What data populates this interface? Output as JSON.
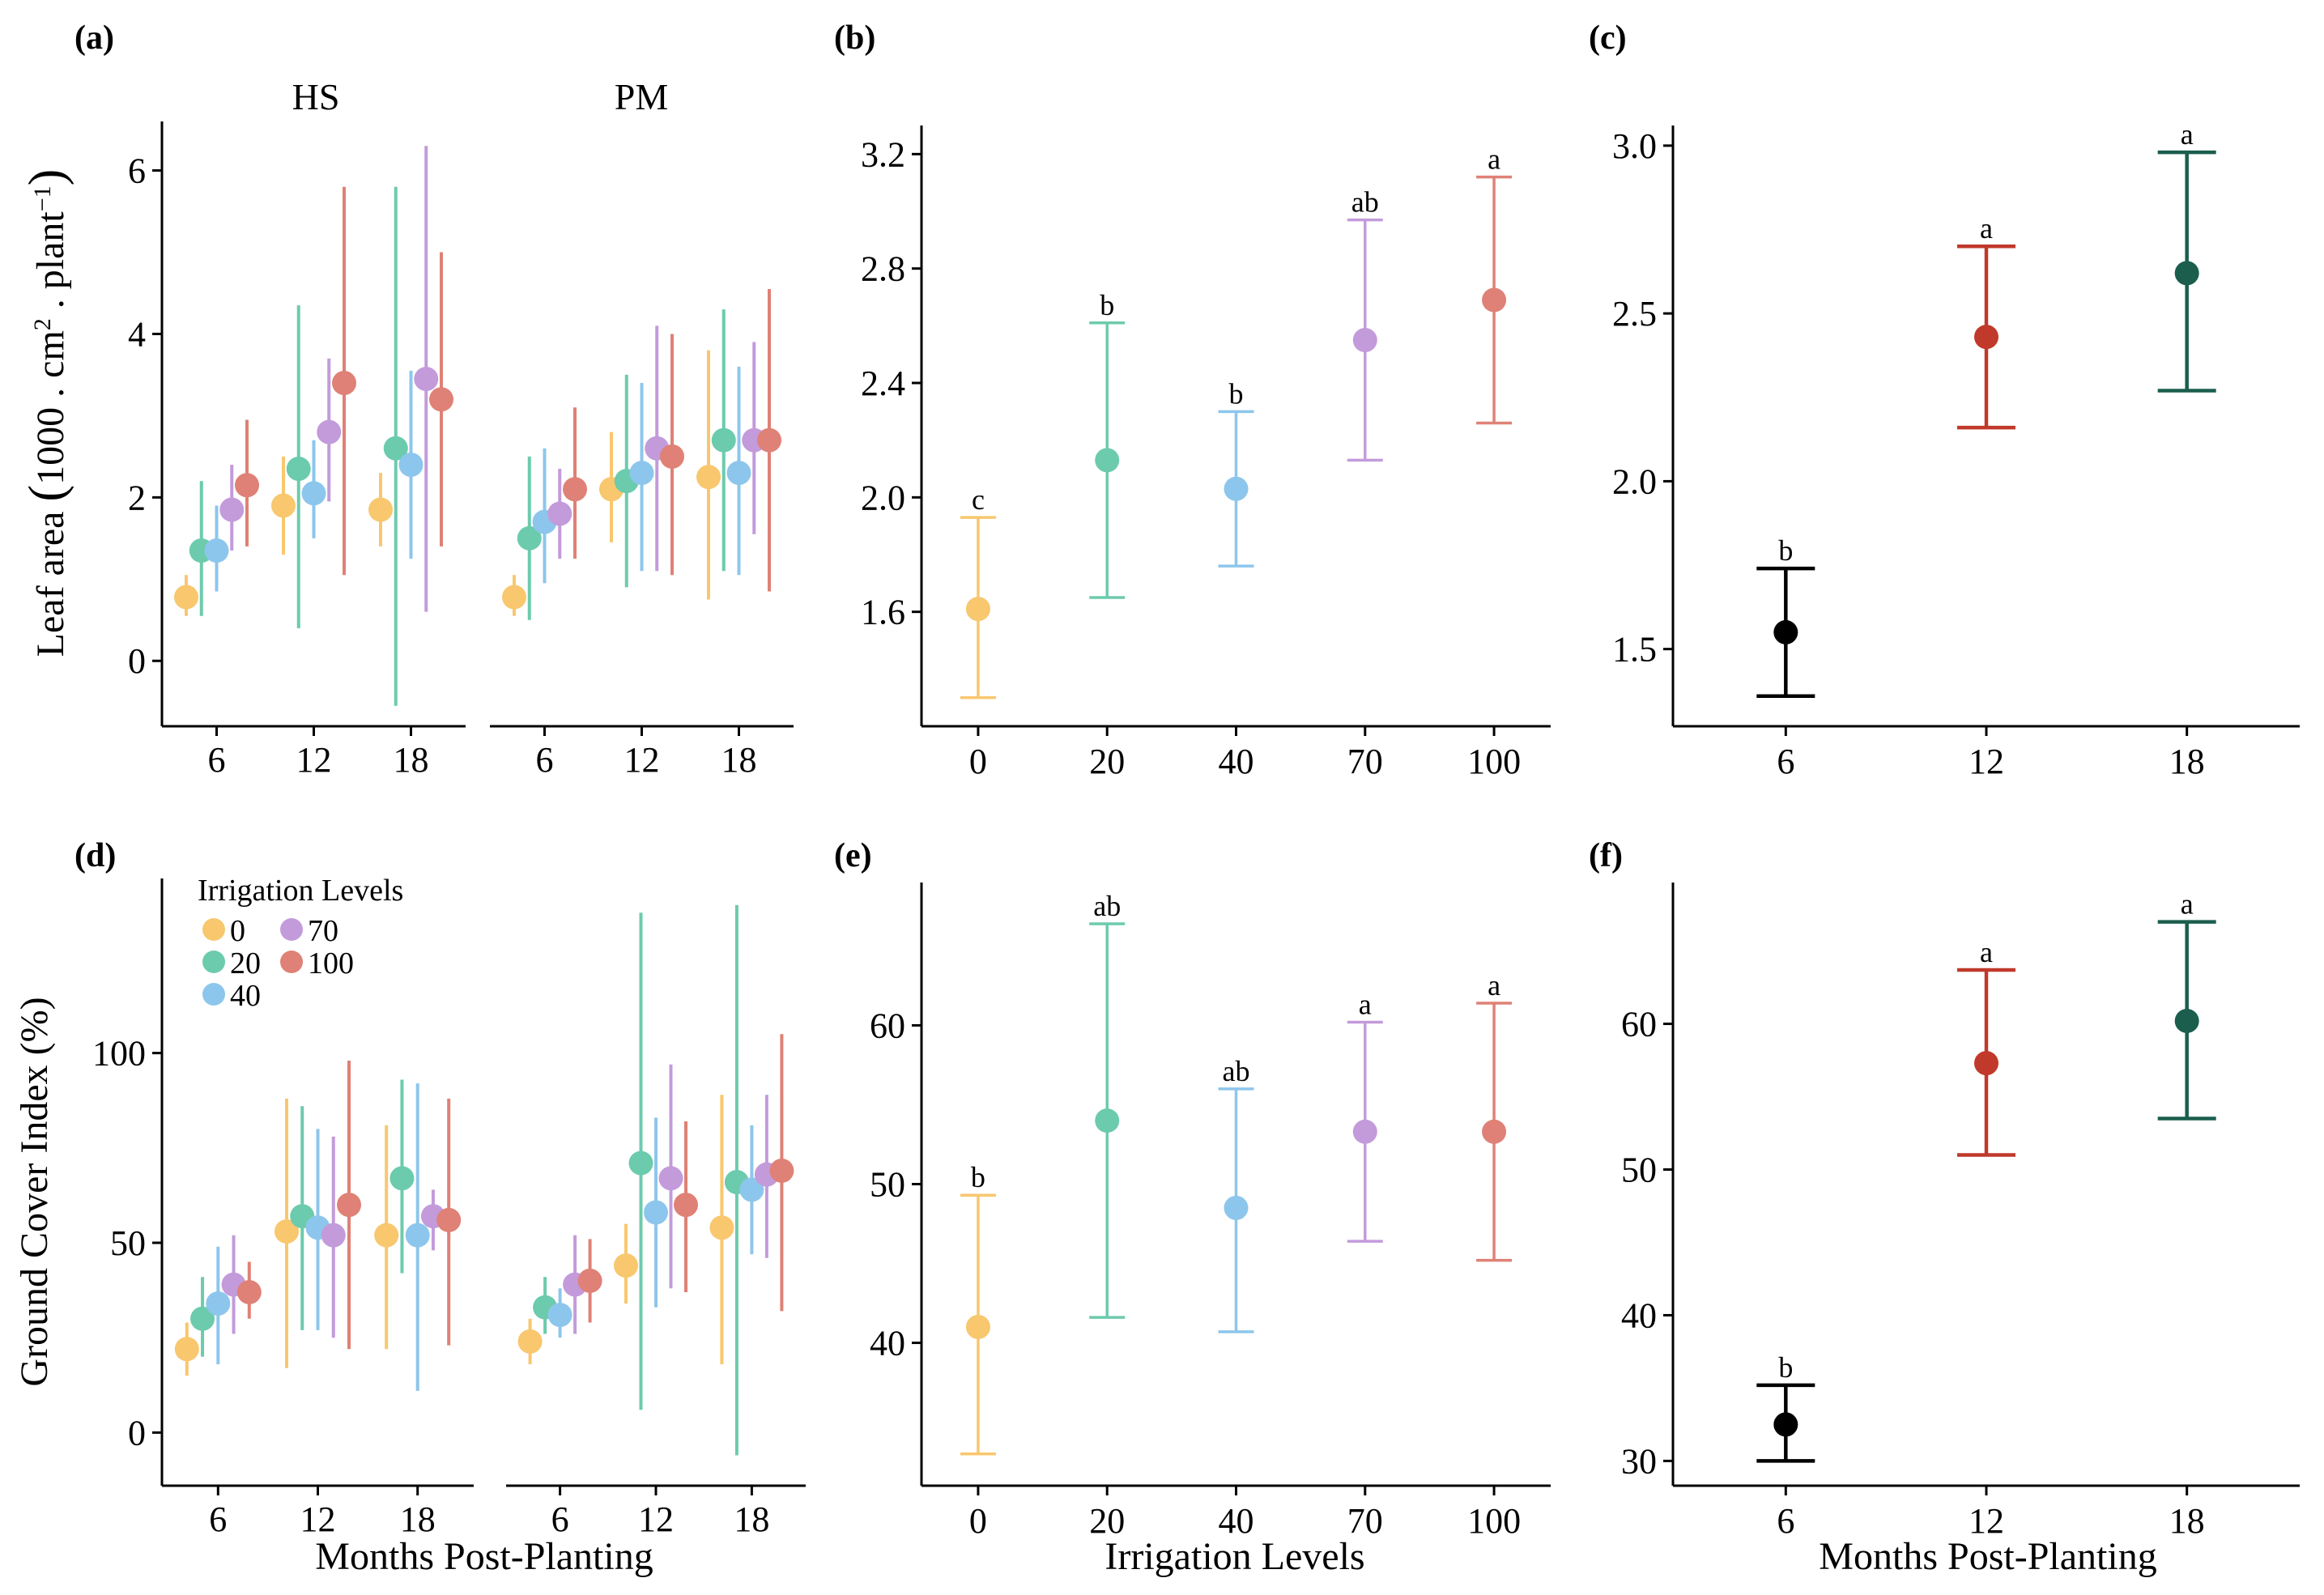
{
  "figure": {
    "x_label_months": "Months Post-Planting",
    "x_label_irrigation": "Irrigation Levels",
    "y_label_leaf_area": "Leaf area (1000 . cm² . plant⁻¹)",
    "y_label_leaf_area_parts": {
      "pre": "Leaf area ",
      "open_paren": "(",
      "main": "1000 . cm",
      "sup1": "2",
      "mid": " . plant",
      "sup2": "−1",
      "close_paren": ")"
    },
    "y_label_ground_cover": "Ground Cover Index (%)"
  },
  "colors": {
    "level_0": "#F8C76E",
    "level_20": "#6CCBAD",
    "level_40": "#8DC6EC",
    "level_70": "#C39BDB",
    "level_100": "#DF8176",
    "month_6": "#000000",
    "month_12": "#C0392B",
    "month_18": "#1B5E4E"
  },
  "legend": {
    "title": "Irrigation Levels",
    "items": [
      {
        "label": "0",
        "color": "#F8C76E"
      },
      {
        "label": "20",
        "color": "#6CCBAD"
      },
      {
        "label": "40",
        "color": "#8DC6EC"
      },
      {
        "label": "70",
        "color": "#C39BDB"
      },
      {
        "label": "100",
        "color": "#DF8176"
      }
    ]
  },
  "chart_data": [
    {
      "panel": "(a)",
      "type": "scatter",
      "facets": [
        "HS",
        "PM"
      ],
      "x_categories": [
        "6",
        "12",
        "18"
      ],
      "ylim": [
        -0.8,
        6.6
      ],
      "yticks": [
        0,
        2,
        4,
        6
      ],
      "ylabel": "Leaf area (1000 . cm² . plant⁻¹)",
      "grid": false,
      "series": [
        {
          "name": "0",
          "color": "#F8C76E",
          "HS": [
            {
              "x": "6",
              "y": 0.78,
              "lo": 0.55,
              "hi": 1.05
            },
            {
              "x": "12",
              "y": 1.9,
              "lo": 1.3,
              "hi": 2.5
            },
            {
              "x": "18",
              "y": 1.85,
              "lo": 1.4,
              "hi": 2.3
            }
          ],
          "PM": [
            {
              "x": "6",
              "y": 0.78,
              "lo": 0.55,
              "hi": 1.05
            },
            {
              "x": "12",
              "y": 2.1,
              "lo": 1.45,
              "hi": 2.8
            },
            {
              "x": "18",
              "y": 2.25,
              "lo": 0.75,
              "hi": 3.8
            }
          ]
        },
        {
          "name": "20",
          "color": "#6CCBAD",
          "HS": [
            {
              "x": "6",
              "y": 1.35,
              "lo": 0.55,
              "hi": 2.2
            },
            {
              "x": "12",
              "y": 2.35,
              "lo": 0.4,
              "hi": 4.35
            },
            {
              "x": "18",
              "y": 2.6,
              "lo": -0.55,
              "hi": 5.8
            }
          ],
          "PM": [
            {
              "x": "6",
              "y": 1.5,
              "lo": 0.5,
              "hi": 2.5
            },
            {
              "x": "12",
              "y": 2.2,
              "lo": 0.9,
              "hi": 3.5
            },
            {
              "x": "18",
              "y": 2.7,
              "lo": 1.1,
              "hi": 4.3
            }
          ]
        },
        {
          "name": "40",
          "color": "#8DC6EC",
          "HS": [
            {
              "x": "6",
              "y": 1.35,
              "lo": 0.85,
              "hi": 1.9
            },
            {
              "x": "12",
              "y": 2.05,
              "lo": 1.5,
              "hi": 2.7
            },
            {
              "x": "18",
              "y": 2.4,
              "lo": 1.25,
              "hi": 3.55
            }
          ],
          "PM": [
            {
              "x": "6",
              "y": 1.7,
              "lo": 0.95,
              "hi": 2.6
            },
            {
              "x": "12",
              "y": 2.3,
              "lo": 1.1,
              "hi": 3.4
            },
            {
              "x": "18",
              "y": 2.3,
              "lo": 1.05,
              "hi": 3.6
            }
          ]
        },
        {
          "name": "70",
          "color": "#C39BDB",
          "HS": [
            {
              "x": "6",
              "y": 1.85,
              "lo": 1.35,
              "hi": 2.4
            },
            {
              "x": "12",
              "y": 2.8,
              "lo": 1.95,
              "hi": 3.7
            },
            {
              "x": "18",
              "y": 3.45,
              "lo": 0.6,
              "hi": 6.3
            }
          ],
          "PM": [
            {
              "x": "6",
              "y": 1.8,
              "lo": 1.25,
              "hi": 2.35
            },
            {
              "x": "12",
              "y": 2.6,
              "lo": 1.1,
              "hi": 4.1
            },
            {
              "x": "18",
              "y": 2.7,
              "lo": 1.55,
              "hi": 3.9
            }
          ]
        },
        {
          "name": "100",
          "color": "#DF8176",
          "HS": [
            {
              "x": "6",
              "y": 2.15,
              "lo": 1.4,
              "hi": 2.95
            },
            {
              "x": "12",
              "y": 3.4,
              "lo": 1.05,
              "hi": 5.8
            },
            {
              "x": "18",
              "y": 3.2,
              "lo": 1.4,
              "hi": 5.0
            }
          ],
          "PM": [
            {
              "x": "6",
              "y": 2.1,
              "lo": 1.25,
              "hi": 3.1
            },
            {
              "x": "12",
              "y": 2.5,
              "lo": 1.05,
              "hi": 4.0
            },
            {
              "x": "18",
              "y": 2.7,
              "lo": 0.85,
              "hi": 4.55
            }
          ]
        }
      ]
    },
    {
      "panel": "(b)",
      "type": "scatter",
      "categories": [
        "0",
        "20",
        "40",
        "70",
        "100"
      ],
      "values": [
        1.61,
        2.13,
        2.03,
        2.55,
        2.69
      ],
      "lo": [
        1.3,
        1.65,
        1.76,
        2.13,
        2.26
      ],
      "hi": [
        1.93,
        2.61,
        2.3,
        2.97,
        3.12
      ],
      "letters": [
        "c",
        "b",
        "b",
        "ab",
        "a"
      ],
      "colors": [
        "#F8C76E",
        "#6CCBAD",
        "#8DC6EC",
        "#C39BDB",
        "#DF8176"
      ],
      "ylim": [
        1.2,
        3.3
      ],
      "yticks": [
        1.6,
        2.0,
        2.4,
        2.8,
        3.2
      ],
      "ytick_labels": [
        "1.6",
        "2.0",
        "2.4",
        "2.8",
        "3.2"
      ],
      "grid": false
    },
    {
      "panel": "(c)",
      "type": "scatter",
      "categories": [
        "6",
        "12",
        "18"
      ],
      "values": [
        1.55,
        2.43,
        2.62
      ],
      "lo": [
        1.36,
        2.16,
        2.27
      ],
      "hi": [
        1.74,
        2.7,
        2.98
      ],
      "letters": [
        "b",
        "a",
        "a"
      ],
      "colors": [
        "#000000",
        "#C0392B",
        "#1B5E4E"
      ],
      "ylim": [
        1.27,
        3.06
      ],
      "yticks": [
        1.5,
        2.0,
        2.5,
        3.0
      ],
      "ytick_labels": [
        "1.5",
        "2.0",
        "2.5",
        "3.0"
      ],
      "grid": false
    },
    {
      "panel": "(d)",
      "type": "scatter",
      "facets": [
        "",
        ""
      ],
      "x_categories": [
        "6",
        "12",
        "18"
      ],
      "ylim": [
        -14,
        146
      ],
      "yticks": [
        0,
        50,
        100
      ],
      "xlabel": "Months Post-Planting",
      "ylabel": "Ground Cover Index (%)",
      "grid": false,
      "series": [
        {
          "name": "0",
          "color": "#F8C76E",
          "HS": [
            {
              "x": "6",
              "y": 22,
              "lo": 15,
              "hi": 29
            },
            {
              "x": "12",
              "y": 53,
              "lo": 17,
              "hi": 88
            },
            {
              "x": "18",
              "y": 52,
              "lo": 22,
              "hi": 81
            }
          ],
          "PM": [
            {
              "x": "6",
              "y": 24,
              "lo": 18,
              "hi": 30
            },
            {
              "x": "12",
              "y": 44,
              "lo": 34,
              "hi": 55
            },
            {
              "x": "18",
              "y": 54,
              "lo": 18,
              "hi": 89
            }
          ]
        },
        {
          "name": "20",
          "color": "#6CCBAD",
          "HS": [
            {
              "x": "6",
              "y": 30,
              "lo": 20,
              "hi": 41
            },
            {
              "x": "12",
              "y": 57,
              "lo": 27,
              "hi": 86
            },
            {
              "x": "18",
              "y": 67,
              "lo": 42,
              "hi": 93
            }
          ],
          "PM": [
            {
              "x": "6",
              "y": 33,
              "lo": 26,
              "hi": 41
            },
            {
              "x": "12",
              "y": 71,
              "lo": 6,
              "hi": 137
            },
            {
              "x": "18",
              "y": 66,
              "lo": -6,
              "hi": 139
            }
          ]
        },
        {
          "name": "40",
          "color": "#8DC6EC",
          "HS": [
            {
              "x": "6",
              "y": 34,
              "lo": 18,
              "hi": 49
            },
            {
              "x": "12",
              "y": 54,
              "lo": 27,
              "hi": 80
            },
            {
              "x": "18",
              "y": 52,
              "lo": 11,
              "hi": 92
            }
          ],
          "PM": [
            {
              "x": "6",
              "y": 31,
              "lo": 25,
              "hi": 38
            },
            {
              "x": "12",
              "y": 58,
              "lo": 33,
              "hi": 83
            },
            {
              "x": "18",
              "y": 64,
              "lo": 47,
              "hi": 81
            }
          ]
        },
        {
          "name": "70",
          "color": "#C39BDB",
          "HS": [
            {
              "x": "6",
              "y": 39,
              "lo": 26,
              "hi": 52
            },
            {
              "x": "12",
              "y": 52,
              "lo": 25,
              "hi": 78
            },
            {
              "x": "18",
              "y": 57,
              "lo": 48,
              "hi": 64
            }
          ],
          "PM": [
            {
              "x": "6",
              "y": 39,
              "lo": 26,
              "hi": 52
            },
            {
              "x": "12",
              "y": 67,
              "lo": 38,
              "hi": 97
            },
            {
              "x": "18",
              "y": 68,
              "lo": 46,
              "hi": 89
            }
          ]
        },
        {
          "name": "100",
          "color": "#DF8176",
          "HS": [
            {
              "x": "6",
              "y": 37,
              "lo": 30,
              "hi": 45
            },
            {
              "x": "12",
              "y": 60,
              "lo": 22,
              "hi": 98
            },
            {
              "x": "18",
              "y": 56,
              "lo": 23,
              "hi": 88
            }
          ],
          "PM": [
            {
              "x": "6",
              "y": 40,
              "lo": 29,
              "hi": 51
            },
            {
              "x": "12",
              "y": 60,
              "lo": 37,
              "hi": 82
            },
            {
              "x": "18",
              "y": 69,
              "lo": 32,
              "hi": 105
            }
          ]
        }
      ]
    },
    {
      "panel": "(e)",
      "type": "scatter",
      "categories": [
        "0",
        "20",
        "40",
        "70",
        "100"
      ],
      "values": [
        41,
        54,
        48.5,
        53.3,
        53.3
      ],
      "lo": [
        33,
        41.6,
        40.7,
        46.4,
        45.2
      ],
      "hi": [
        49.3,
        66.4,
        56,
        60.2,
        61.4
      ],
      "letters": [
        "b",
        "ab",
        "ab",
        "a",
        "a"
      ],
      "colors": [
        "#F8C76E",
        "#6CCBAD",
        "#8DC6EC",
        "#C39BDB",
        "#DF8176"
      ],
      "xlabel": "Irrigation Levels",
      "ylim": [
        31,
        69
      ],
      "yticks": [
        40,
        50,
        60
      ],
      "ytick_labels": [
        "40",
        "50",
        "60"
      ],
      "grid": false
    },
    {
      "panel": "(f)",
      "type": "scatter",
      "categories": [
        "6",
        "12",
        "18"
      ],
      "values": [
        32.5,
        57.3,
        60.2
      ],
      "lo": [
        30,
        51,
        53.5
      ],
      "hi": [
        35.2,
        63.7,
        67
      ],
      "letters": [
        "b",
        "a",
        "a"
      ],
      "colors": [
        "#000000",
        "#C0392B",
        "#1B5E4E"
      ],
      "xlabel": "Months Post-Planting",
      "ylim": [
        28.3,
        69.7
      ],
      "yticks": [
        30,
        40,
        50,
        60
      ],
      "ytick_labels": [
        "30",
        "40",
        "50",
        "60"
      ],
      "grid": false
    }
  ]
}
